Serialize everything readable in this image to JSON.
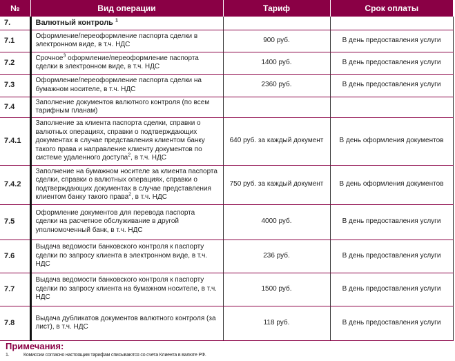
{
  "table": {
    "headers": [
      "№",
      "Вид операции",
      "Тариф",
      "Срок оплаты"
    ],
    "section": {
      "num": "7.",
      "title": "Валютный контроль",
      "sup": "1"
    },
    "rows": [
      {
        "num": "7.1",
        "op": "Оформление/переоформление паспорта сделки в электронном виде, в т.ч. НДС",
        "op_pre": "",
        "sup": "",
        "op_post": "",
        "tariff": "900 руб.",
        "term": "В день предоставления услуги"
      },
      {
        "num": "7.2",
        "op": "",
        "op_pre": "Срочное",
        "sup": "3",
        "op_post": " оформление/переоформление паспорта сделки в электронном виде, в т.ч. НДС",
        "tariff": "1400 руб.",
        "term": "В день предоставления услуги"
      },
      {
        "num": "7.3",
        "op": "Оформление/переоформление паспорта сделки на бумажном носителе, в т.ч. НДС",
        "op_pre": "",
        "sup": "",
        "op_post": "",
        "tariff": "2360 руб.",
        "term": "В день предоставления услуги"
      },
      {
        "num": "7.4",
        "op": "Заполнение документов валютного контроля (по всем тарифным планам)",
        "op_pre": "",
        "sup": "",
        "op_post": "",
        "tariff": "",
        "term": ""
      },
      {
        "num": "7.4.1",
        "op": "",
        "op_pre": "Заполнение за клиента паспорта сделки, справки о валютных операциях, справки о подтверждающих документах в случае представления клиентом банку такого права и направление клиенту документов  по системе удаленного доступа",
        "sup": "2",
        "op_post": ", в т.ч. НДС",
        "tariff": "640 руб. за каждый документ",
        "term": "В день оформления документов"
      },
      {
        "num": "7.4.2",
        "op": "",
        "op_pre": "Заполнение на бумажном носителе за клиента паспорта сделки, справки о валютных операциях, справки о подтверждающих документах в случае представления клиентом банку такого права",
        "sup": "2",
        "op_post": ", в т.ч. НДС",
        "tariff": "750 руб. за каждый документ",
        "term": "В день оформления документов"
      },
      {
        "num": "7.5",
        "op": "Оформление документов для перевода паспорта сделки на расчетное обслуживание в другой уполномоченный банк, в т.ч. НДС",
        "op_pre": "",
        "sup": "",
        "op_post": "",
        "tariff": "4000 руб.",
        "term": "В день предоставления услуги"
      },
      {
        "num": "7.6",
        "op": "Выдача ведомости банковского контроля к паспорту сделки по запросу клиента в электронном виде, в т.ч. НДС",
        "op_pre": "",
        "sup": "",
        "op_post": "",
        "tariff": "236 руб.",
        "term": "В день предоставления услуги"
      },
      {
        "num": "7.7",
        "op": "Выдача ведомости банковского контроля к паспорту сделки по запросу клиента на бумажном носителе, в т.ч. НДС",
        "op_pre": "",
        "sup": "",
        "op_post": "",
        "tariff": "1500 руб.",
        "term": "В день предоставления услуги"
      },
      {
        "num": "7.8",
        "op": "Выдача дубликатов документов валютного контроля (за лист), в т.ч. НДС",
        "op_pre": "",
        "sup": "",
        "op_post": "",
        "tariff": "118 руб.",
        "term": "В день предоставления услуги"
      }
    ]
  },
  "notes": {
    "title": "Примечания:",
    "items": [
      {
        "num": "1.",
        "text": "Комиссии согласно настоящим тарифам списываются со счета Клиента в валюте РФ."
      }
    ]
  },
  "colors": {
    "header_bg": "#8a0045",
    "row_border": "#8a0045"
  }
}
